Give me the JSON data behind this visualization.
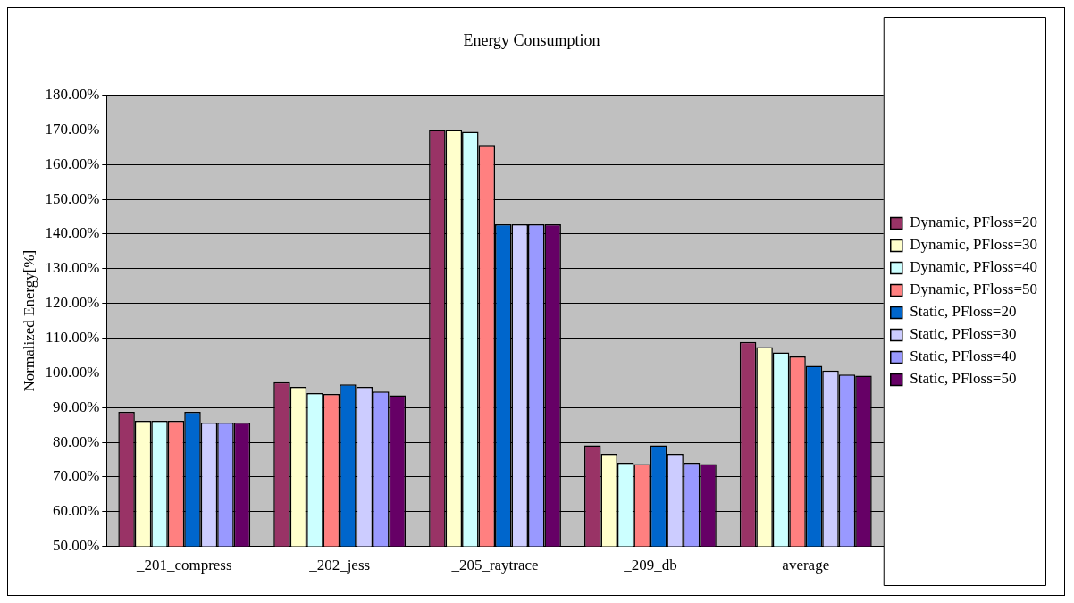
{
  "chart_data": {
    "type": "bar",
    "title": "Energy Consumption",
    "ylabel": "Normalized Energy[%]",
    "categories": [
      "_201_compress",
      "_202_jess",
      "_205_raytrace",
      "_209_db",
      "average"
    ],
    "series": [
      {
        "name": "Dynamic, PFloss=20",
        "color": "#993366",
        "values": [
          88.8,
          97.3,
          170,
          79.1,
          108.9
        ]
      },
      {
        "name": "Dynamic, PFloss=30",
        "color": "#ffffcc",
        "values": [
          86.2,
          96.0,
          170,
          76.7,
          107.4
        ]
      },
      {
        "name": "Dynamic, PFloss=40",
        "color": "#ccffff",
        "values": [
          86.2,
          94.2,
          169.5,
          74.1,
          105.9
        ]
      },
      {
        "name": "Dynamic, PFloss=50",
        "color": "#ff8080",
        "values": [
          86.2,
          93.9,
          165.7,
          73.7,
          104.7
        ]
      },
      {
        "name": "Static, PFloss=20",
        "color": "#0066cc",
        "values": [
          88.8,
          96.7,
          142.8,
          79.1,
          102.0
        ]
      },
      {
        "name": "Static, PFloss=30",
        "color": "#ccccff",
        "values": [
          85.7,
          96.0,
          142.8,
          76.7,
          100.7
        ]
      },
      {
        "name": "Static, PFloss=40",
        "color": "#9999ff",
        "values": [
          85.7,
          94.6,
          142.8,
          74.1,
          99.5
        ]
      },
      {
        "name": "Static, PFloss=50",
        "color": "#660066",
        "values": [
          85.7,
          93.5,
          142.8,
          73.7,
          99.2
        ]
      }
    ],
    "ylim": [
      50,
      180
    ],
    "yticks": [
      {
        "value": 50,
        "label": "50.00%"
      },
      {
        "value": 60,
        "label": "60.00%"
      },
      {
        "value": 70,
        "label": "70.00%"
      },
      {
        "value": 80,
        "label": "80.00%"
      },
      {
        "value": 90,
        "label": "90.00%"
      },
      {
        "value": 100,
        "label": "100.00%"
      },
      {
        "value": 110,
        "label": "110.00%"
      },
      {
        "value": 120,
        "label": "120.00%"
      },
      {
        "value": 130,
        "label": "130.00%"
      },
      {
        "value": 140,
        "label": "140.00%"
      },
      {
        "value": 150,
        "label": "150.00%"
      },
      {
        "value": 160,
        "label": "160.00%"
      },
      {
        "value": 170,
        "label": "170.00%"
      },
      {
        "value": 180,
        "label": "180.00%"
      }
    ],
    "grid": "y",
    "legend": "right"
  }
}
